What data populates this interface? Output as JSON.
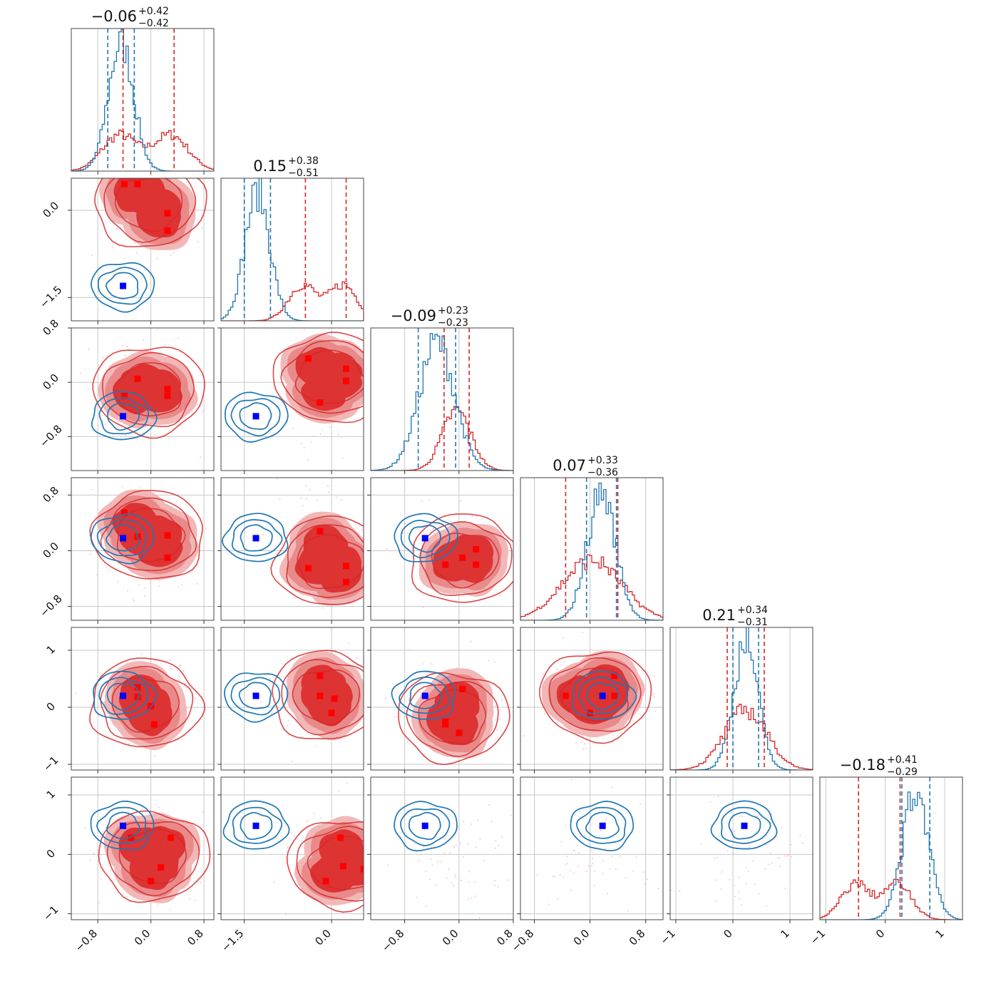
{
  "chart_data": {
    "type": "corner",
    "n_params": 6,
    "grid": true,
    "colors": {
      "series_a": "#d62728",
      "series_b": "#1f77b4",
      "marker_a": "#ff0000",
      "marker_b": "#0000ff",
      "fill_outer": "#f2b8b8",
      "fill_mid": "#e98a8a",
      "fill_inner": "#dd3333"
    },
    "titles": [
      {
        "median": "−0.06",
        "plus": "+0.42",
        "minus": "−0.42"
      },
      {
        "median": "0.15",
        "plus": "+0.38",
        "minus": "−0.51"
      },
      {
        "median": "−0.09",
        "plus": "+0.23",
        "minus": "−0.23"
      },
      {
        "median": "0.07",
        "plus": "+0.33",
        "minus": "−0.36"
      },
      {
        "median": "0.21",
        "plus": "+0.34",
        "minus": "−0.31"
      },
      {
        "median": "−0.18",
        "plus": "+0.41",
        "minus": "−0.29"
      }
    ],
    "ranges": [
      [
        -1.2,
        0.95
      ],
      [
        -1.9,
        0.55
      ],
      [
        -1.3,
        0.8
      ],
      [
        -1.0,
        1.05
      ],
      [
        -1.1,
        1.4
      ],
      [
        -1.1,
        1.3
      ]
    ],
    "ticks": [
      {
        "values": [
          -0.8,
          0.0,
          0.8
        ],
        "labels": [
          "−0.8",
          "0.0",
          "0.8"
        ]
      },
      {
        "values": [
          -1.5,
          0.0
        ],
        "labels": [
          "−1.5",
          "0.0"
        ]
      },
      {
        "values": [
          -0.8,
          0.0,
          0.8
        ],
        "labels": [
          "−0.8",
          "0.0",
          "0.8"
        ]
      },
      {
        "values": [
          -0.8,
          0.0,
          0.8
        ],
        "labels": [
          "−0.8",
          "0.0",
          "0.8"
        ]
      },
      {
        "values": [
          -1,
          0,
          1
        ],
        "labels": [
          "−1",
          "0",
          "1"
        ]
      },
      {
        "values": [
          -1,
          0,
          1
        ],
        "labels": [
          "−1",
          "0",
          "1"
        ]
      }
    ],
    "quantiles_a": [
      [
        -0.42,
        0.35
      ],
      [
        -0.45,
        0.25
      ],
      [
        -0.22,
        0.15
      ],
      [
        -0.35,
        0.4
      ],
      [
        -0.1,
        0.55
      ],
      [
        -0.45,
        0.25
      ]
    ],
    "quantiles_b": [
      [
        -0.65,
        -0.25
      ],
      [
        -1.5,
        -1.05
      ],
      [
        -0.6,
        -0.05
      ],
      [
        -0.05,
        0.38
      ],
      [
        0.0,
        0.45
      ],
      [
        0.28,
        0.75
      ]
    ],
    "markers_a": [
      [
        [
          -0.4,
          0.45
        ],
        [
          -0.2,
          0.45
        ],
        [
          0.25,
          -0.05
        ],
        [
          0.25,
          -0.35
        ]
      ],
      [
        [
          -0.4,
          -0.2
        ],
        [
          -0.2,
          0.05
        ],
        [
          0.25,
          -0.1
        ],
        [
          0.25,
          -0.2
        ]
      ],
      [
        [
          -0.4,
          0.35
        ],
        [
          -0.2,
          -0.3
        ],
        [
          0.25,
          0.02
        ],
        [
          0.25,
          0.2
        ]
      ],
      [
        [
          -0.4,
          0.55
        ],
        [
          -0.2,
          0.2
        ],
        [
          0.25,
          -0.1
        ],
        [
          0.25,
          0.22
        ]
      ],
      [
        [
          -0.4,
          -0.25
        ],
        [
          -0.2,
          0.28
        ],
        [
          0.25,
          -0.45
        ],
        [
          0.25,
          -0.22
        ]
      ],
      [
        [
          -0.2,
          -0.2
        ],
        [
          0.05,
          -0.1
        ],
        [
          0.25,
          0.02
        ],
        [
          0.25,
          -0.2
        ]
      ],
      [
        [
          -0.2,
          0.35
        ],
        [
          -0.2,
          0.18
        ],
        [
          0.0,
          0.02
        ],
        [
          0.05,
          -0.3
        ]
      ],
      [
        [
          -0.2,
          0.55
        ],
        [
          -0.2,
          0.2
        ],
        [
          0.0,
          -0.1
        ],
        [
          0.05,
          0.15
        ]
      ],
      [
        [
          -0.2,
          -0.25
        ],
        [
          -0.2,
          -0.3
        ],
        [
          0.0,
          -0.45
        ],
        [
          0.05,
          0.32
        ]
      ],
      [
        [
          0.35,
          0.2
        ],
        [
          -0.35,
          0.2
        ],
        [
          0.0,
          -0.1
        ],
        [
          0.35,
          0.55
        ]
      ],
      [
        [
          0.3,
          0.28
        ],
        [
          -0.3,
          0.28
        ],
        [
          0.0,
          -0.45
        ],
        [
          0.15,
          -0.22
        ]
      ],
      [
        [
          0.2,
          -0.2
        ],
        [
          0.15,
          0.28
        ],
        [
          -0.1,
          -0.45
        ],
        [
          0.55,
          -0.25
        ]
      ]
    ],
    "markers_b": [
      [
        -0.42,
        -1.3
      ],
      [
        -0.42,
        -0.5
      ],
      [
        -1.3,
        -0.5
      ],
      [
        -0.42,
        0.18
      ],
      [
        -1.3,
        0.18
      ],
      [
        -0.5,
        0.18
      ],
      [
        -0.42,
        0.2
      ],
      [
        -1.3,
        0.2
      ],
      [
        -0.5,
        0.2
      ],
      [
        0.18,
        0.2
      ],
      [
        -0.42,
        0.48
      ],
      [
        -1.3,
        0.48
      ],
      [
        -0.5,
        0.48
      ],
      [
        0.18,
        0.48
      ],
      [
        0.2,
        0.48
      ]
    ]
  }
}
